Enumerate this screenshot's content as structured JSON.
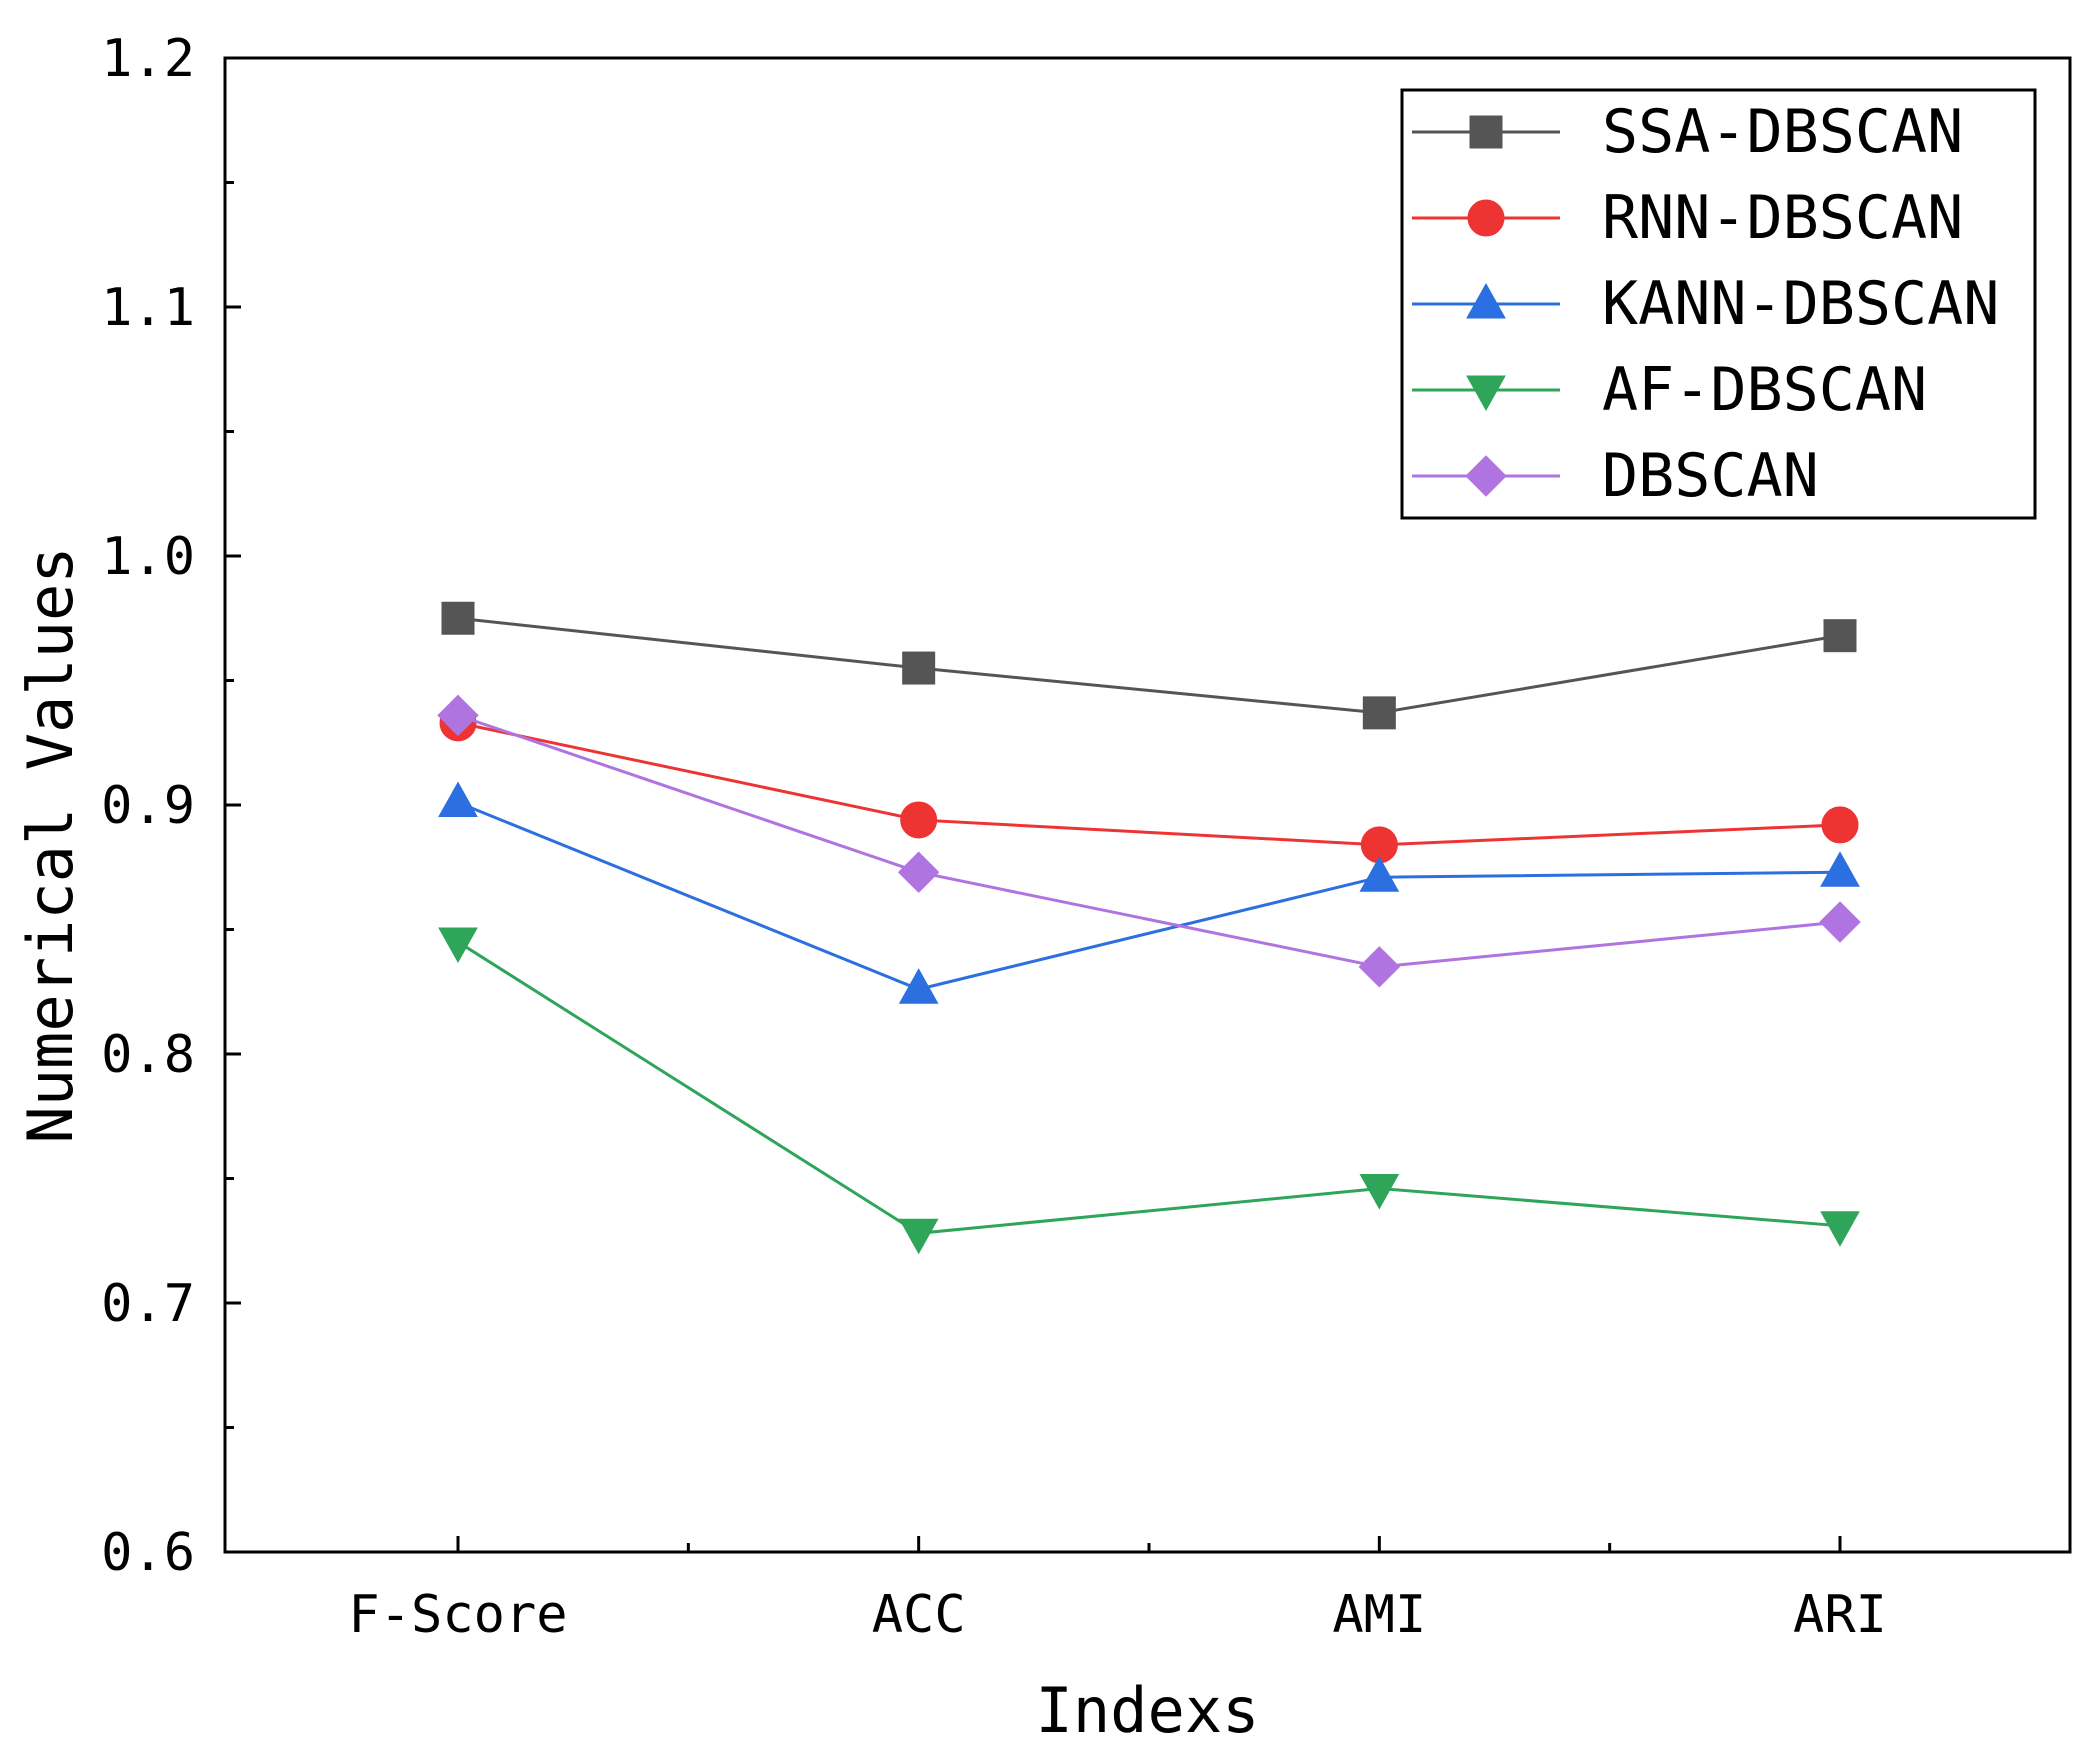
{
  "chart_data": {
    "type": "line",
    "title": "",
    "xlabel": "Indexs",
    "ylabel": "Numerical Values",
    "categories": [
      "F-Score",
      "ACC",
      "AMI",
      "ARI"
    ],
    "ylim": [
      0.6,
      1.2
    ],
    "yticks": [
      "0.6",
      "0.7",
      "0.8",
      "0.9",
      "1.0",
      "1.1",
      "1.2"
    ],
    "grid": false,
    "legend_position": "top-right",
    "series": [
      {
        "name": "SSA-DBSCAN",
        "color": "#555555",
        "marker": "square",
        "values": [
          0.975,
          0.955,
          0.937,
          0.968
        ]
      },
      {
        "name": "RNN-DBSCAN",
        "color": "#ee3333",
        "marker": "circle",
        "values": [
          0.933,
          0.894,
          0.884,
          0.892
        ]
      },
      {
        "name": "KANN-DBSCAN",
        "color": "#2b6fe0",
        "marker": "triangle-up",
        "values": [
          0.901,
          0.826,
          0.871,
          0.873
        ]
      },
      {
        "name": "AF-DBSCAN",
        "color": "#2fa55a",
        "marker": "triangle-down",
        "values": [
          0.845,
          0.728,
          0.746,
          0.731
        ]
      },
      {
        "name": "DBSCAN",
        "color": "#b074e0",
        "marker": "diamond",
        "values": [
          0.936,
          0.873,
          0.835,
          0.853
        ]
      }
    ]
  }
}
